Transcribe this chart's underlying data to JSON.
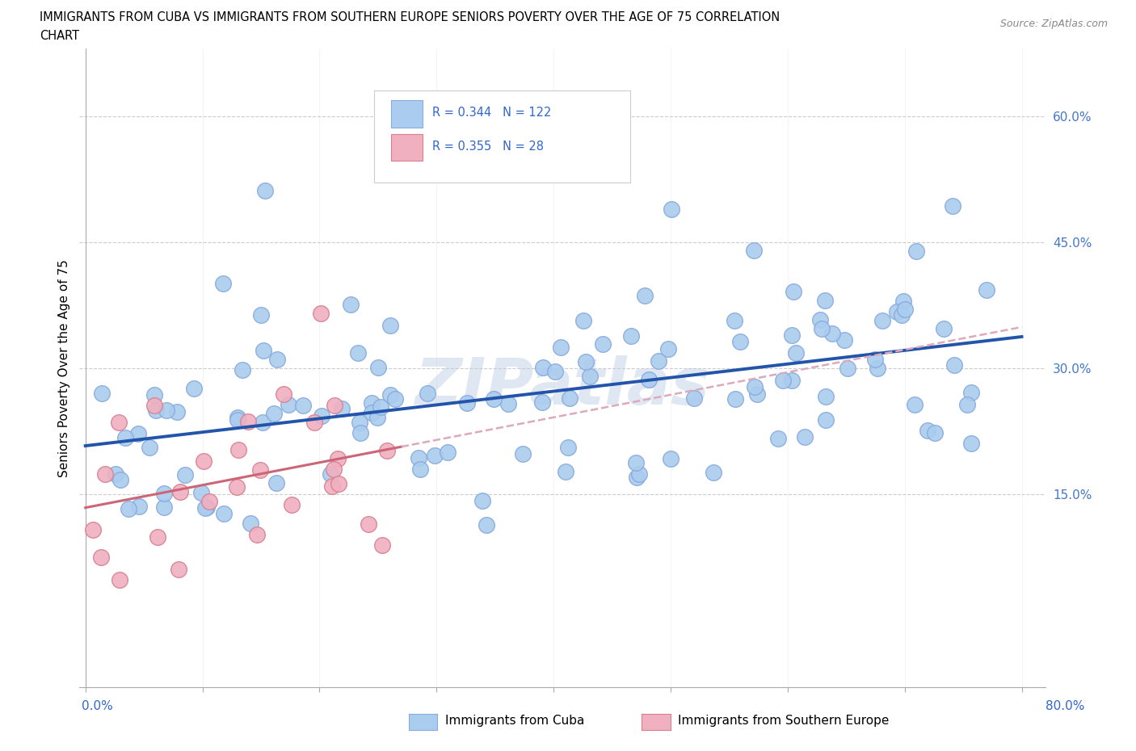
{
  "title_line1": "IMMIGRANTS FROM CUBA VS IMMIGRANTS FROM SOUTHERN EUROPE SENIORS POVERTY OVER THE AGE OF 75 CORRELATION",
  "title_line2": "CHART",
  "source": "Source: ZipAtlas.com",
  "ylabel": "Seniors Poverty Over the Age of 75",
  "ytick_labels": [
    "15.0%",
    "30.0%",
    "45.0%",
    "60.0%"
  ],
  "ytick_values": [
    0.15,
    0.3,
    0.45,
    0.6
  ],
  "xlim": [
    -0.005,
    0.82
  ],
  "ylim": [
    -0.08,
    0.68
  ],
  "cuba_color": "#aaccee",
  "cuba_edge": "#88aadd",
  "southern_color": "#f0b0c0",
  "southern_edge": "#d88090",
  "cuba_R": 0.344,
  "cuba_N": 122,
  "southern_R": 0.355,
  "southern_N": 28,
  "legend_label_cuba": "Immigrants from Cuba",
  "legend_label_southern": "Immigrants from Southern Europe",
  "watermark": "ZIPatlas",
  "grid_color": "#cccccc",
  "trend_cuba_color": "#2255aa",
  "trend_southern_color": "#cc6677",
  "trend_southern_dashed_color": "#ddaabb"
}
